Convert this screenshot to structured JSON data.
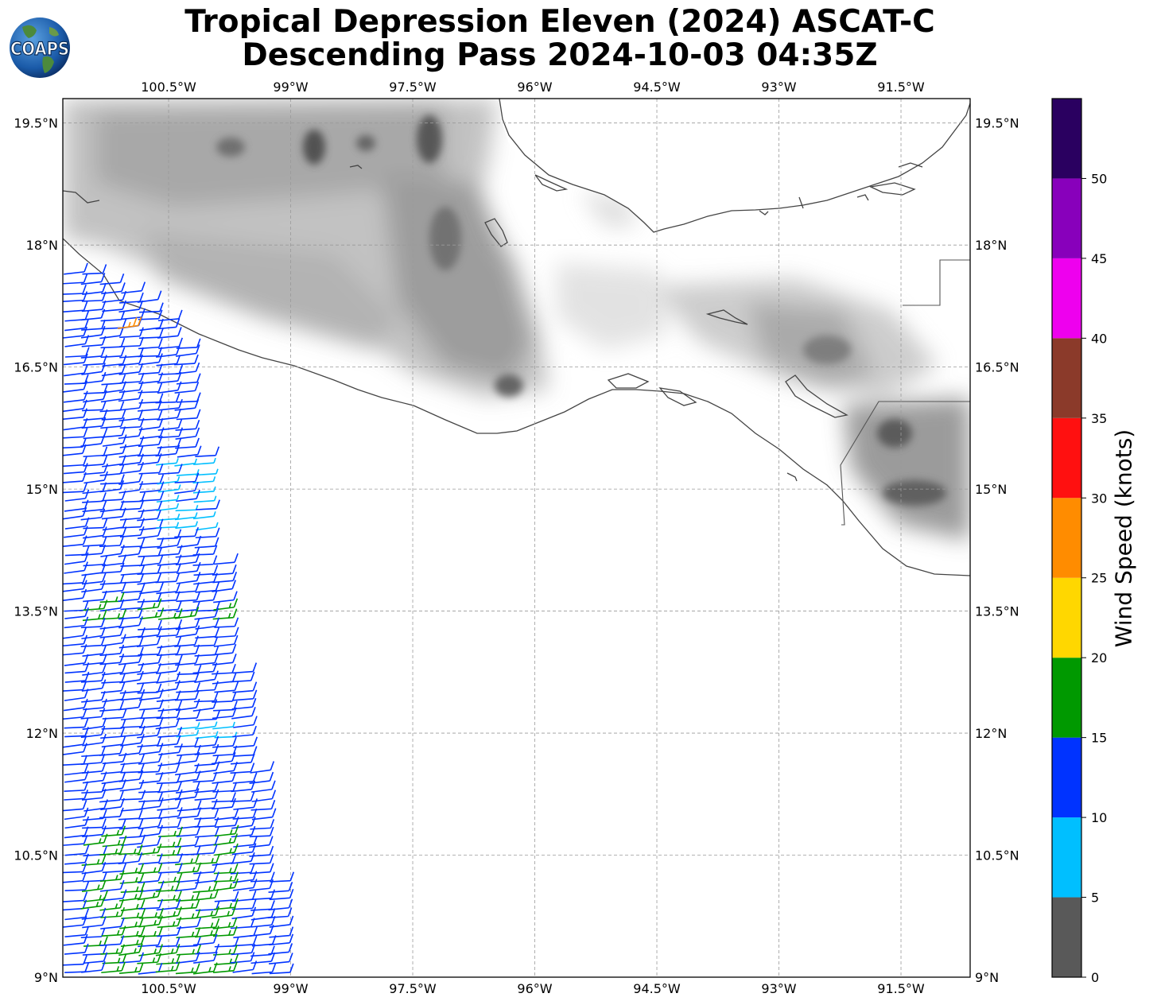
{
  "title": {
    "line1": "Tropical Depression Eleven (2024) ASCAT-C",
    "line2": "Descending Pass 2024-10-03 04:35Z"
  },
  "logo": {
    "text": "COAPS"
  },
  "map": {
    "longitude_labels": [
      "100.5°W",
      "99°W",
      "97.5°W",
      "96°W",
      "94.5°W",
      "93°W",
      "91.5°W"
    ],
    "latitude_labels": [
      "19.5°N",
      "18°N",
      "16.5°N",
      "15°N",
      "13.5°N",
      "12°N",
      "10.5°N",
      "9°N"
    ],
    "lon_range": [
      -101.8,
      -90.65
    ],
    "lat_range": [
      9,
      19.8
    ],
    "gridlines": true,
    "land_shading": "grayscale terrain"
  },
  "colorbar": {
    "label": "Wind Speed (knots)",
    "tick_labels": [
      "0",
      "5",
      "10",
      "15",
      "20",
      "25",
      "30",
      "35",
      "40",
      "45",
      "50"
    ],
    "bins": [
      {
        "from": 0,
        "to": 5,
        "color": "#595959"
      },
      {
        "from": 5,
        "to": 10,
        "color": "#00bfff"
      },
      {
        "from": 10,
        "to": 15,
        "color": "#0033ff"
      },
      {
        "from": 15,
        "to": 20,
        "color": "#009900"
      },
      {
        "from": 20,
        "to": 25,
        "color": "#ffd700"
      },
      {
        "from": 25,
        "to": 30,
        "color": "#ff8c00"
      },
      {
        "from": 30,
        "to": 35,
        "color": "#ff1010"
      },
      {
        "from": 35,
        "to": 40,
        "color": "#8b3a2a"
      },
      {
        "from": 40,
        "to": 45,
        "color": "#ee00ee"
      },
      {
        "from": 45,
        "to": 50,
        "color": "#8800bb"
      },
      {
        "from": 50,
        "to": 55,
        "color": "#2a0060"
      }
    ]
  }
}
